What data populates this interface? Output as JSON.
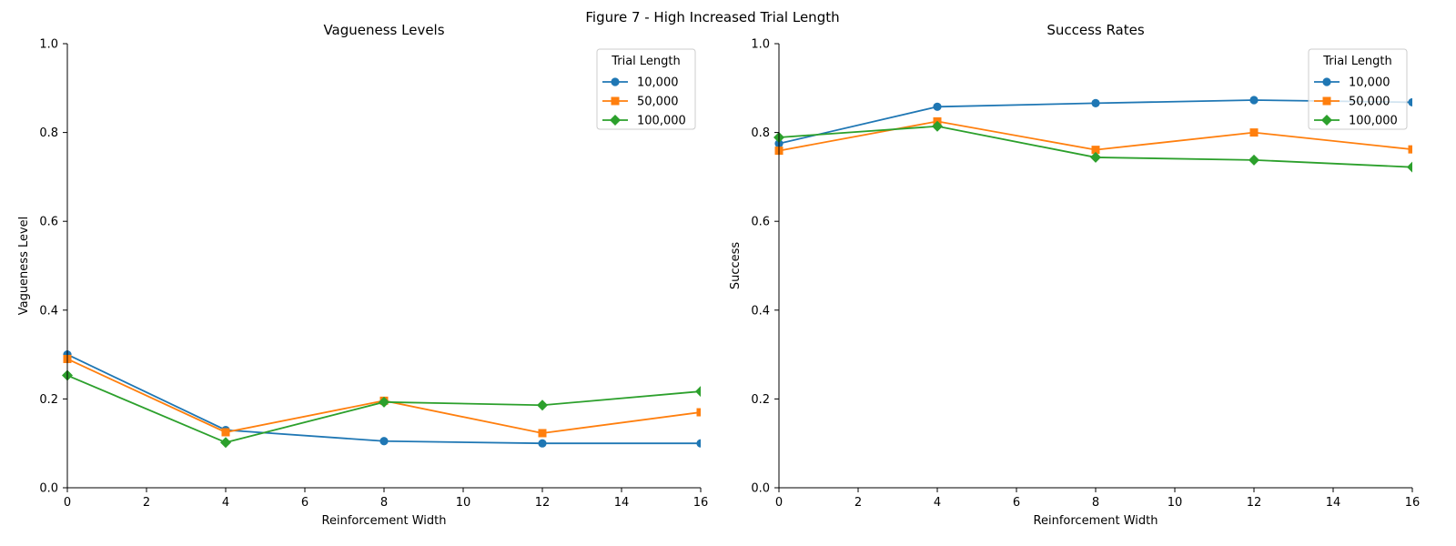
{
  "figure_title": "Figure 7 - High Increased Trial Length",
  "colors": {
    "10,000": "#1f77b4",
    "50,000": "#ff7f0e",
    "100,000": "#2ca02c"
  },
  "chart_data": [
    {
      "type": "line",
      "title": "Vagueness Levels",
      "xlabel": "Reinforcement Width",
      "ylabel": "Vagueness Level",
      "xlim": [
        0,
        16
      ],
      "ylim": [
        0,
        1.0
      ],
      "xticks": [
        "0",
        "2",
        "4",
        "6",
        "8",
        "10",
        "12",
        "14",
        "16"
      ],
      "yticks": [
        "0.0",
        "0.2",
        "0.4",
        "0.6",
        "0.8",
        "1.0"
      ],
      "grid": false,
      "legend_title": "Trial Length",
      "legend_position": "top-right",
      "x": [
        0,
        4,
        8,
        12,
        16
      ],
      "series": [
        {
          "name": "10,000",
          "marker": "circle",
          "values": [
            0.3,
            0.13,
            0.105,
            0.1,
            0.1
          ]
        },
        {
          "name": "50,000",
          "marker": "square",
          "values": [
            0.29,
            0.125,
            0.196,
            0.123,
            0.17
          ]
        },
        {
          "name": "100,000",
          "marker": "diamond",
          "values": [
            0.253,
            0.102,
            0.193,
            0.186,
            0.217
          ]
        }
      ]
    },
    {
      "type": "line",
      "title": "Success Rates",
      "xlabel": "Reinforcement Width",
      "ylabel": "Success",
      "xlim": [
        0,
        16
      ],
      "ylim": [
        0,
        1.0
      ],
      "xticks": [
        "0",
        "2",
        "4",
        "6",
        "8",
        "10",
        "12",
        "14",
        "16"
      ],
      "yticks": [
        "0.0",
        "0.2",
        "0.4",
        "0.6",
        "0.8",
        "1.0"
      ],
      "grid": false,
      "legend_title": "Trial Length",
      "legend_position": "top-right",
      "x": [
        0,
        4,
        8,
        12,
        16
      ],
      "series": [
        {
          "name": "10,000",
          "marker": "circle",
          "values": [
            0.775,
            0.858,
            0.866,
            0.873,
            0.868
          ]
        },
        {
          "name": "50,000",
          "marker": "square",
          "values": [
            0.759,
            0.825,
            0.761,
            0.8,
            0.762
          ]
        },
        {
          "name": "100,000",
          "marker": "diamond",
          "values": [
            0.789,
            0.814,
            0.744,
            0.738,
            0.722
          ]
        }
      ]
    }
  ]
}
